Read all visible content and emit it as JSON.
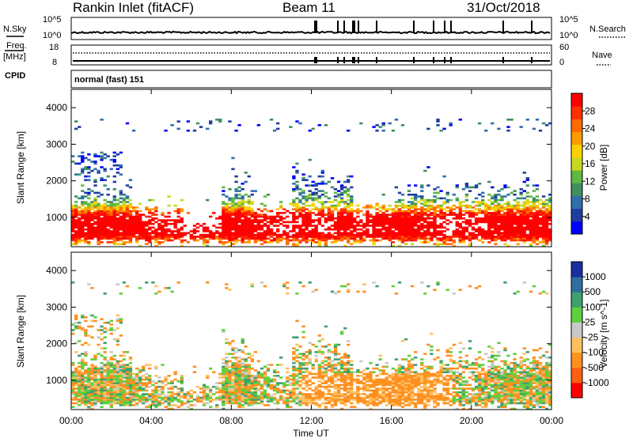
{
  "header": {
    "site": "Rankin Inlet (fitACF)",
    "beam": "Beam 11",
    "date": "31/Oct/2018"
  },
  "strips": {
    "nsky_label": "N.Sky",
    "nsearch_label": "N.Search",
    "noise_ticks_left": [
      "10^5",
      "10^0"
    ],
    "noise_ticks_right": [
      "10^5",
      "10^0"
    ],
    "freq_label": "Freq.",
    "freq_unit": "[MHz]",
    "freq_ticks": [
      "18",
      "8"
    ],
    "nave_label": "Nave",
    "nave_ticks": [
      "60",
      "0"
    ],
    "cpid_label": "CPID",
    "cpid_value": "normal (fast) 151"
  },
  "colors": {
    "power": [
      "#0000ff",
      "#1f3c9e",
      "#2f6fae",
      "#3f8f5f",
      "#5fb83f",
      "#c8d820",
      "#ffd000",
      "#ff9a00",
      "#ff6a00",
      "#ff3000",
      "#ff0000"
    ],
    "velocity": [
      "#1b2f9e",
      "#2f6f9f",
      "#3f9f6f",
      "#5fcf3f",
      "#c8c8c8",
      "#ffc060",
      "#ff9020",
      "#ff6010",
      "#ff0000"
    ]
  },
  "chart_data": [
    {
      "type": "heatmap",
      "parameter": "power",
      "xlabel": "Time UT",
      "ylabel": "Slant Range [km]",
      "xticks": [
        "00:00",
        "04:00",
        "08:00",
        "12:00",
        "16:00",
        "20:00",
        "00:00"
      ],
      "yticks": [
        1000,
        2000,
        3000,
        4000
      ],
      "ylim": [
        200,
        4500
      ],
      "colorbar_label": "Power [dB]",
      "colorbar_ticks": [
        4,
        8,
        12,
        16,
        20,
        24,
        28
      ],
      "colorbar_range": [
        0,
        30
      ]
    },
    {
      "type": "heatmap",
      "parameter": "velocity",
      "xlabel": "Time UT",
      "ylabel": "Slant Range [km]",
      "xticks": [
        "00:00",
        "04:00",
        "08:00",
        "12:00",
        "16:00",
        "20:00",
        "00:00"
      ],
      "yticks": [
        1000,
        2000,
        3000,
        4000
      ],
      "ylim": [
        200,
        4500
      ],
      "colorbar_label": "Velocity [m s^-1]",
      "colorbar_ticks": [
        1000,
        500,
        100,
        25,
        -25,
        -100,
        -500,
        -1000
      ]
    }
  ]
}
